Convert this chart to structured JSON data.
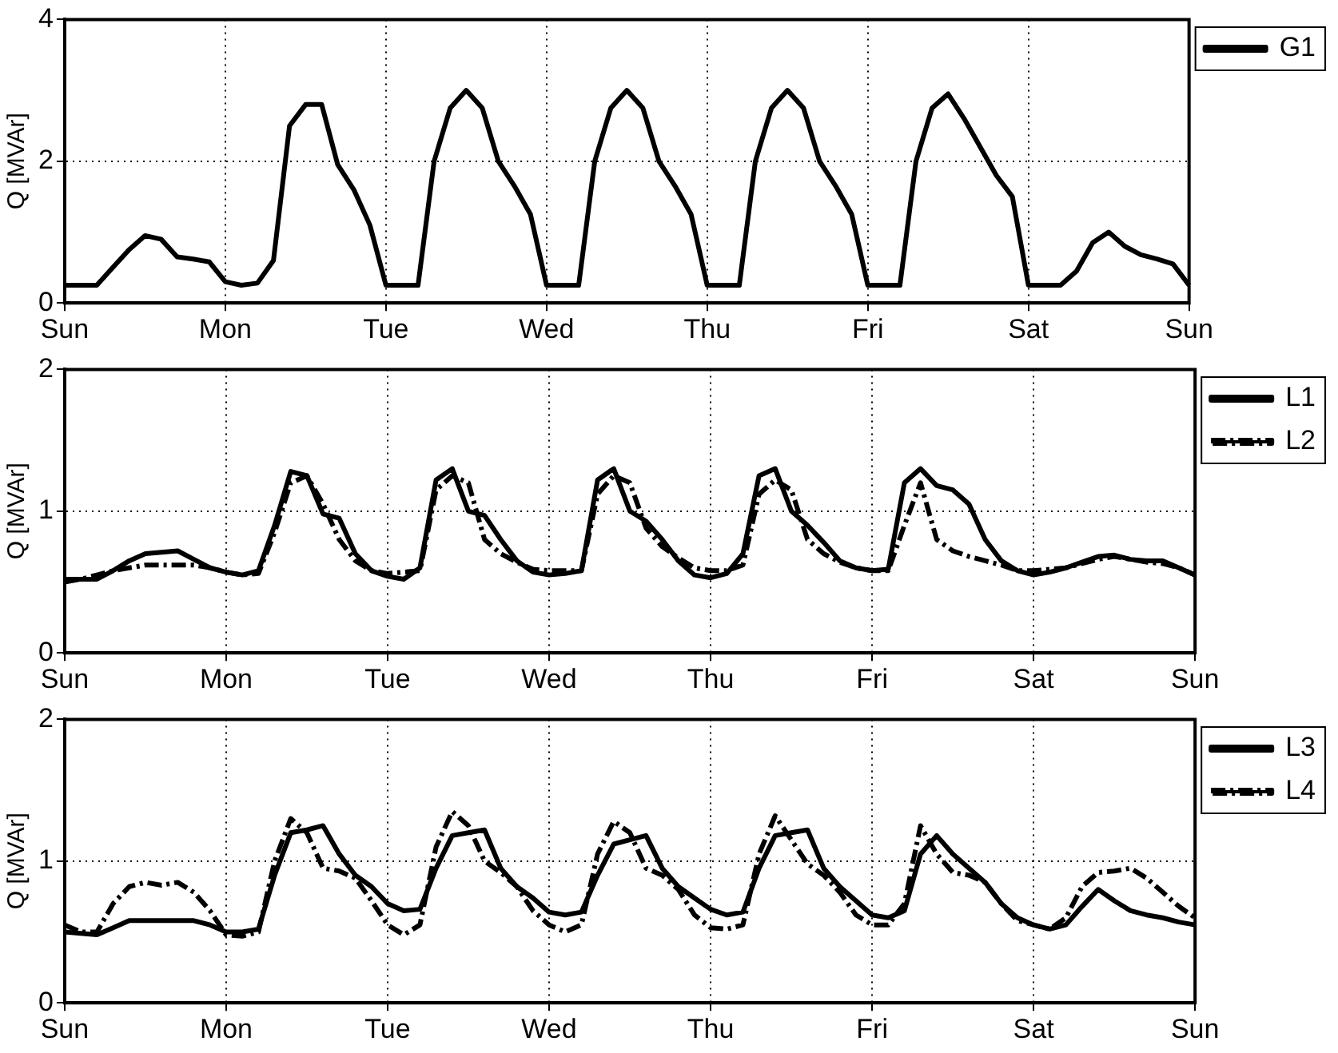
{
  "chart_data": [
    {
      "type": "line",
      "ylabel": "Q [MVAr]",
      "categories": [
        "Sun",
        null,
        null,
        null,
        null,
        null,
        null,
        null,
        null,
        null,
        "Mon",
        null,
        null,
        null,
        null,
        null,
        null,
        null,
        null,
        null,
        "Tue",
        null,
        null,
        null,
        null,
        null,
        null,
        null,
        null,
        null,
        "Wed",
        null,
        null,
        null,
        null,
        null,
        null,
        null,
        null,
        null,
        "Thu",
        null,
        null,
        null,
        null,
        null,
        null,
        null,
        null,
        null,
        "Fri",
        null,
        null,
        null,
        null,
        null,
        null,
        null,
        null,
        null,
        "Sat",
        null,
        null,
        null,
        null,
        null,
        null,
        null,
        null,
        null,
        "Sun"
      ],
      "ylim": [
        0,
        4
      ],
      "yticks": [
        0,
        2,
        4
      ],
      "grid": true,
      "legend": "top right",
      "marker": "none",
      "series": [
        {
          "name": "G1",
          "color": "#000000",
          "line_style": "solid",
          "values": [
            0.25,
            0.25,
            0.25,
            0.5,
            0.75,
            0.95,
            0.9,
            0.65,
            0.62,
            0.58,
            0.3,
            0.25,
            0.28,
            0.6,
            2.5,
            2.8,
            2.8,
            1.95,
            1.6,
            1.1,
            0.25,
            0.25,
            0.25,
            2.0,
            2.75,
            3.0,
            2.75,
            2.0,
            1.65,
            1.25,
            0.25,
            0.25,
            0.25,
            2.0,
            2.75,
            3.0,
            2.75,
            2.0,
            1.65,
            1.25,
            0.25,
            0.25,
            0.25,
            2.0,
            2.75,
            3.0,
            2.75,
            2.0,
            1.65,
            1.25,
            0.25,
            0.25,
            0.25,
            2.0,
            2.75,
            2.95,
            2.6,
            2.2,
            1.8,
            1.5,
            0.25,
            0.25,
            0.25,
            0.45,
            0.85,
            1.0,
            0.8,
            0.68,
            0.62,
            0.55,
            0.25
          ]
        }
      ]
    },
    {
      "type": "line",
      "ylabel": "Q [MVAr]",
      "categories": [
        "Sun",
        null,
        null,
        null,
        null,
        null,
        null,
        null,
        null,
        null,
        "Mon",
        null,
        null,
        null,
        null,
        null,
        null,
        null,
        null,
        null,
        "Tue",
        null,
        null,
        null,
        null,
        null,
        null,
        null,
        null,
        null,
        "Wed",
        null,
        null,
        null,
        null,
        null,
        null,
        null,
        null,
        null,
        "Thu",
        null,
        null,
        null,
        null,
        null,
        null,
        null,
        null,
        null,
        "Fri",
        null,
        null,
        null,
        null,
        null,
        null,
        null,
        null,
        null,
        "Sat",
        null,
        null,
        null,
        null,
        null,
        null,
        null,
        null,
        null,
        "Sun"
      ],
      "ylim": [
        0,
        2
      ],
      "yticks": [
        0,
        1,
        2
      ],
      "grid": true,
      "legend": "top right",
      "marker": "none",
      "series": [
        {
          "name": "L1",
          "color": "#000000",
          "line_style": "solid",
          "values": [
            0.52,
            0.52,
            0.52,
            0.58,
            0.65,
            0.7,
            0.71,
            0.72,
            0.66,
            0.6,
            0.57,
            0.55,
            0.58,
            0.9,
            1.28,
            1.25,
            0.98,
            0.95,
            0.7,
            0.58,
            0.54,
            0.52,
            0.6,
            1.22,
            1.3,
            1.0,
            0.97,
            0.8,
            0.65,
            0.57,
            0.55,
            0.56,
            0.58,
            1.22,
            1.3,
            1.0,
            0.93,
            0.8,
            0.65,
            0.55,
            0.53,
            0.56,
            0.7,
            1.25,
            1.3,
            1.0,
            0.9,
            0.78,
            0.65,
            0.6,
            0.58,
            0.59,
            1.2,
            1.3,
            1.18,
            1.15,
            1.05,
            0.8,
            0.65,
            0.58,
            0.55,
            0.57,
            0.6,
            0.64,
            0.68,
            0.69,
            0.66,
            0.65,
            0.65,
            0.6,
            0.55
          ]
        },
        {
          "name": "L2",
          "color": "#000000",
          "line_style": "dashed",
          "values": [
            0.5,
            0.52,
            0.55,
            0.58,
            0.6,
            0.62,
            0.62,
            0.62,
            0.62,
            0.6,
            0.57,
            0.55,
            0.56,
            0.85,
            1.2,
            1.25,
            1.05,
            0.8,
            0.65,
            0.58,
            0.56,
            0.57,
            0.58,
            1.15,
            1.25,
            1.2,
            0.8,
            0.7,
            0.64,
            0.59,
            0.58,
            0.58,
            0.58,
            1.12,
            1.25,
            1.2,
            0.88,
            0.75,
            0.67,
            0.6,
            0.58,
            0.58,
            0.62,
            1.12,
            1.22,
            1.15,
            0.8,
            0.7,
            0.64,
            0.6,
            0.58,
            0.58,
            0.9,
            1.2,
            0.8,
            0.72,
            0.68,
            0.65,
            0.62,
            0.58,
            0.58,
            0.59,
            0.6,
            0.63,
            0.66,
            0.68,
            0.66,
            0.64,
            0.63,
            0.6,
            0.55
          ]
        }
      ]
    },
    {
      "type": "line",
      "ylabel": "Q [MVAr]",
      "categories": [
        "Sun",
        null,
        null,
        null,
        null,
        null,
        null,
        null,
        null,
        null,
        "Mon",
        null,
        null,
        null,
        null,
        null,
        null,
        null,
        null,
        null,
        "Tue",
        null,
        null,
        null,
        null,
        null,
        null,
        null,
        null,
        null,
        "Wed",
        null,
        null,
        null,
        null,
        null,
        null,
        null,
        null,
        null,
        "Thu",
        null,
        null,
        null,
        null,
        null,
        null,
        null,
        null,
        null,
        "Fri",
        null,
        null,
        null,
        null,
        null,
        null,
        null,
        null,
        null,
        "Sat",
        null,
        null,
        null,
        null,
        null,
        null,
        null,
        null,
        null,
        "Sun"
      ],
      "ylim": [
        0,
        2
      ],
      "yticks": [
        0,
        1,
        2
      ],
      "grid": true,
      "legend": "top right",
      "marker": "none",
      "series": [
        {
          "name": "L3",
          "color": "#000000",
          "line_style": "solid",
          "values": [
            0.5,
            0.49,
            0.48,
            0.53,
            0.58,
            0.58,
            0.58,
            0.58,
            0.58,
            0.55,
            0.5,
            0.5,
            0.52,
            0.9,
            1.2,
            1.22,
            1.25,
            1.05,
            0.9,
            0.82,
            0.7,
            0.65,
            0.66,
            0.95,
            1.18,
            1.2,
            1.22,
            0.95,
            0.82,
            0.74,
            0.64,
            0.62,
            0.64,
            0.9,
            1.12,
            1.15,
            1.18,
            0.95,
            0.82,
            0.74,
            0.66,
            0.62,
            0.64,
            0.95,
            1.18,
            1.2,
            1.22,
            0.95,
            0.82,
            0.72,
            0.62,
            0.6,
            0.65,
            1.05,
            1.18,
            1.05,
            0.95,
            0.85,
            0.7,
            0.6,
            0.55,
            0.52,
            0.55,
            0.68,
            0.8,
            0.72,
            0.65,
            0.62,
            0.6,
            0.57,
            0.55
          ]
        },
        {
          "name": "L4",
          "color": "#000000",
          "line_style": "dashed",
          "values": [
            0.55,
            0.5,
            0.5,
            0.7,
            0.82,
            0.85,
            0.83,
            0.85,
            0.78,
            0.65,
            0.48,
            0.47,
            0.5,
            1.0,
            1.3,
            1.2,
            0.95,
            0.93,
            0.88,
            0.72,
            0.55,
            0.48,
            0.55,
            1.1,
            1.35,
            1.25,
            1.0,
            0.92,
            0.82,
            0.65,
            0.55,
            0.5,
            0.55,
            1.05,
            1.28,
            1.2,
            0.95,
            0.9,
            0.8,
            0.62,
            0.53,
            0.52,
            0.55,
            1.05,
            1.32,
            1.15,
            0.98,
            0.9,
            0.78,
            0.62,
            0.55,
            0.55,
            0.7,
            1.25,
            1.05,
            0.92,
            0.9,
            0.85,
            0.7,
            0.58,
            0.55,
            0.52,
            0.6,
            0.82,
            0.92,
            0.93,
            0.95,
            0.88,
            0.78,
            0.68,
            0.6
          ]
        }
      ]
    }
  ]
}
